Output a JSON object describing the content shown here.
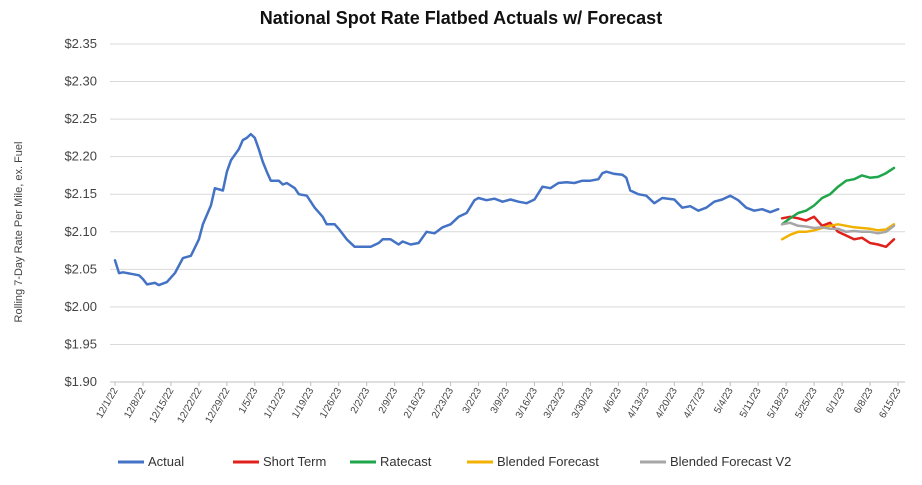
{
  "chart_data": {
    "type": "line",
    "title": "National Spot Rate Flatbed Actuals w/ Forecast",
    "xlabel": "",
    "ylabel": "Rolling 7-Day Rate Per Mile, ex. Fuel",
    "ylim": [
      1.9,
      2.35
    ],
    "yticks": [
      "$1.90",
      "$1.95",
      "$2.00",
      "$2.05",
      "$2.10",
      "$2.15",
      "$2.20",
      "$2.25",
      "$2.30",
      "$2.35"
    ],
    "grid": true,
    "legend_position": "bottom",
    "x_start": "2022-12-01",
    "x_end": "2023-06-15",
    "xticks": [
      {
        "date": "2022-12-01",
        "label": "12/1/22"
      },
      {
        "date": "2022-12-08",
        "label": "12/8/22"
      },
      {
        "date": "2022-12-15",
        "label": "12/15/22"
      },
      {
        "date": "2022-12-22",
        "label": "12/22/22"
      },
      {
        "date": "2022-12-29",
        "label": "12/29/22"
      },
      {
        "date": "2023-01-05",
        "label": "1/5/23"
      },
      {
        "date": "2023-01-12",
        "label": "1/12/23"
      },
      {
        "date": "2023-01-19",
        "label": "1/19/23"
      },
      {
        "date": "2023-01-26",
        "label": "1/26/23"
      },
      {
        "date": "2023-02-02",
        "label": "2/2/23"
      },
      {
        "date": "2023-02-09",
        "label": "2/9/23"
      },
      {
        "date": "2023-02-16",
        "label": "2/16/23"
      },
      {
        "date": "2023-02-23",
        "label": "2/23/23"
      },
      {
        "date": "2023-03-02",
        "label": "3/2/23"
      },
      {
        "date": "2023-03-09",
        "label": "3/9/23"
      },
      {
        "date": "2023-03-16",
        "label": "3/16/23"
      },
      {
        "date": "2023-03-23",
        "label": "3/23/23"
      },
      {
        "date": "2023-03-30",
        "label": "3/30/23"
      },
      {
        "date": "2023-04-06",
        "label": "4/6/23"
      },
      {
        "date": "2023-04-13",
        "label": "4/13/23"
      },
      {
        "date": "2023-04-20",
        "label": "4/20/23"
      },
      {
        "date": "2023-04-27",
        "label": "4/27/23"
      },
      {
        "date": "2023-05-04",
        "label": "5/4/23"
      },
      {
        "date": "2023-05-11",
        "label": "5/11/23"
      },
      {
        "date": "2023-05-18",
        "label": "5/18/23"
      },
      {
        "date": "2023-05-25",
        "label": "5/25/23"
      },
      {
        "date": "2023-06-01",
        "label": "6/1/23"
      },
      {
        "date": "2023-06-08",
        "label": "6/8/23"
      },
      {
        "date": "2023-06-15",
        "label": "6/15/23"
      }
    ],
    "series": [
      {
        "name": "Actual",
        "color": "#4472c4",
        "points": [
          [
            "2022-12-01",
            2.062
          ],
          [
            "2022-12-02",
            2.045
          ],
          [
            "2022-12-03",
            2.046
          ],
          [
            "2022-12-05",
            2.044
          ],
          [
            "2022-12-07",
            2.042
          ],
          [
            "2022-12-08",
            2.037
          ],
          [
            "2022-12-09",
            2.03
          ],
          [
            "2022-12-11",
            2.032
          ],
          [
            "2022-12-12",
            2.029
          ],
          [
            "2022-12-14",
            2.033
          ],
          [
            "2022-12-16",
            2.045
          ],
          [
            "2022-12-18",
            2.065
          ],
          [
            "2022-12-20",
            2.068
          ],
          [
            "2022-12-22",
            2.09
          ],
          [
            "2022-12-23",
            2.11
          ],
          [
            "2022-12-25",
            2.135
          ],
          [
            "2022-12-26",
            2.158
          ],
          [
            "2022-12-28",
            2.155
          ],
          [
            "2022-12-29",
            2.18
          ],
          [
            "2022-12-30",
            2.195
          ],
          [
            "2023-01-01",
            2.21
          ],
          [
            "2023-01-02",
            2.222
          ],
          [
            "2023-01-03",
            2.225
          ],
          [
            "2023-01-04",
            2.23
          ],
          [
            "2023-01-05",
            2.225
          ],
          [
            "2023-01-06",
            2.21
          ],
          [
            "2023-01-07",
            2.193
          ],
          [
            "2023-01-08",
            2.18
          ],
          [
            "2023-01-09",
            2.168
          ],
          [
            "2023-01-11",
            2.168
          ],
          [
            "2023-01-12",
            2.163
          ],
          [
            "2023-01-13",
            2.165
          ],
          [
            "2023-01-15",
            2.158
          ],
          [
            "2023-01-16",
            2.15
          ],
          [
            "2023-01-18",
            2.148
          ],
          [
            "2023-01-20",
            2.132
          ],
          [
            "2023-01-22",
            2.12
          ],
          [
            "2023-01-23",
            2.11
          ],
          [
            "2023-01-25",
            2.11
          ],
          [
            "2023-01-26",
            2.104
          ],
          [
            "2023-01-28",
            2.09
          ],
          [
            "2023-01-30",
            2.08
          ],
          [
            "2023-02-01",
            2.08
          ],
          [
            "2023-02-03",
            2.08
          ],
          [
            "2023-02-05",
            2.085
          ],
          [
            "2023-02-06",
            2.09
          ],
          [
            "2023-02-08",
            2.09
          ],
          [
            "2023-02-10",
            2.083
          ],
          [
            "2023-02-11",
            2.087
          ],
          [
            "2023-02-13",
            2.083
          ],
          [
            "2023-02-15",
            2.085
          ],
          [
            "2023-02-17",
            2.1
          ],
          [
            "2023-02-19",
            2.098
          ],
          [
            "2023-02-21",
            2.106
          ],
          [
            "2023-02-23",
            2.11
          ],
          [
            "2023-02-25",
            2.12
          ],
          [
            "2023-02-27",
            2.125
          ],
          [
            "2023-03-01",
            2.142
          ],
          [
            "2023-03-02",
            2.145
          ],
          [
            "2023-03-04",
            2.142
          ],
          [
            "2023-03-06",
            2.144
          ],
          [
            "2023-03-08",
            2.14
          ],
          [
            "2023-03-10",
            2.143
          ],
          [
            "2023-03-12",
            2.14
          ],
          [
            "2023-03-14",
            2.138
          ],
          [
            "2023-03-16",
            2.143
          ],
          [
            "2023-03-18",
            2.16
          ],
          [
            "2023-03-20",
            2.158
          ],
          [
            "2023-03-22",
            2.165
          ],
          [
            "2023-03-24",
            2.166
          ],
          [
            "2023-03-26",
            2.165
          ],
          [
            "2023-03-28",
            2.168
          ],
          [
            "2023-03-30",
            2.168
          ],
          [
            "2023-04-01",
            2.17
          ],
          [
            "2023-04-02",
            2.178
          ],
          [
            "2023-04-03",
            2.18
          ],
          [
            "2023-04-05",
            2.177
          ],
          [
            "2023-04-07",
            2.176
          ],
          [
            "2023-04-08",
            2.172
          ],
          [
            "2023-04-09",
            2.155
          ],
          [
            "2023-04-11",
            2.15
          ],
          [
            "2023-04-13",
            2.148
          ],
          [
            "2023-04-15",
            2.138
          ],
          [
            "2023-04-17",
            2.145
          ],
          [
            "2023-04-20",
            2.143
          ],
          [
            "2023-04-22",
            2.132
          ],
          [
            "2023-04-24",
            2.134
          ],
          [
            "2023-04-26",
            2.128
          ],
          [
            "2023-04-28",
            2.132
          ],
          [
            "2023-04-30",
            2.14
          ],
          [
            "2023-05-02",
            2.143
          ],
          [
            "2023-05-04",
            2.148
          ],
          [
            "2023-05-06",
            2.142
          ],
          [
            "2023-05-08",
            2.132
          ],
          [
            "2023-05-10",
            2.128
          ],
          [
            "2023-05-12",
            2.13
          ],
          [
            "2023-05-14",
            2.126
          ],
          [
            "2023-05-16",
            2.13
          ]
        ]
      },
      {
        "name": "Short Term",
        "color": "#e0201b",
        "points": [
          [
            "2023-05-17",
            2.118
          ],
          [
            "2023-05-19",
            2.12
          ],
          [
            "2023-05-21",
            2.118
          ],
          [
            "2023-05-23",
            2.115
          ],
          [
            "2023-05-25",
            2.12
          ],
          [
            "2023-05-27",
            2.108
          ],
          [
            "2023-05-29",
            2.112
          ],
          [
            "2023-05-31",
            2.1
          ],
          [
            "2023-06-02",
            2.095
          ],
          [
            "2023-06-04",
            2.09
          ],
          [
            "2023-06-06",
            2.092
          ],
          [
            "2023-06-08",
            2.085
          ],
          [
            "2023-06-10",
            2.083
          ],
          [
            "2023-06-12",
            2.08
          ],
          [
            "2023-06-14",
            2.09
          ]
        ]
      },
      {
        "name": "Ratecast",
        "color": "#1fa64a",
        "points": [
          [
            "2023-05-17",
            2.11
          ],
          [
            "2023-05-19",
            2.118
          ],
          [
            "2023-05-21",
            2.125
          ],
          [
            "2023-05-23",
            2.128
          ],
          [
            "2023-05-25",
            2.135
          ],
          [
            "2023-05-27",
            2.145
          ],
          [
            "2023-05-29",
            2.15
          ],
          [
            "2023-05-31",
            2.16
          ],
          [
            "2023-06-02",
            2.168
          ],
          [
            "2023-06-04",
            2.17
          ],
          [
            "2023-06-06",
            2.175
          ],
          [
            "2023-06-08",
            2.172
          ],
          [
            "2023-06-10",
            2.173
          ],
          [
            "2023-06-12",
            2.178
          ],
          [
            "2023-06-14",
            2.185
          ]
        ]
      },
      {
        "name": "Blended Forecast",
        "color": "#f2b100",
        "points": [
          [
            "2023-05-17",
            2.09
          ],
          [
            "2023-05-19",
            2.096
          ],
          [
            "2023-05-21",
            2.1
          ],
          [
            "2023-05-23",
            2.1
          ],
          [
            "2023-05-25",
            2.102
          ],
          [
            "2023-05-27",
            2.105
          ],
          [
            "2023-05-29",
            2.108
          ],
          [
            "2023-05-31",
            2.11
          ],
          [
            "2023-06-02",
            2.108
          ],
          [
            "2023-06-04",
            2.106
          ],
          [
            "2023-06-06",
            2.105
          ],
          [
            "2023-06-08",
            2.104
          ],
          [
            "2023-06-10",
            2.102
          ],
          [
            "2023-06-12",
            2.103
          ],
          [
            "2023-06-14",
            2.11
          ]
        ]
      },
      {
        "name": "Blended Forecast V2",
        "color": "#a6a6a6",
        "points": [
          [
            "2023-05-17",
            2.11
          ],
          [
            "2023-05-19",
            2.112
          ],
          [
            "2023-05-21",
            2.108
          ],
          [
            "2023-05-23",
            2.107
          ],
          [
            "2023-05-25",
            2.105
          ],
          [
            "2023-05-27",
            2.106
          ],
          [
            "2023-05-29",
            2.104
          ],
          [
            "2023-05-31",
            2.104
          ],
          [
            "2023-06-02",
            2.1
          ],
          [
            "2023-06-04",
            2.101
          ],
          [
            "2023-06-06",
            2.1
          ],
          [
            "2023-06-08",
            2.1
          ],
          [
            "2023-06-10",
            2.098
          ],
          [
            "2023-06-12",
            2.1
          ],
          [
            "2023-06-14",
            2.108
          ]
        ]
      }
    ]
  }
}
